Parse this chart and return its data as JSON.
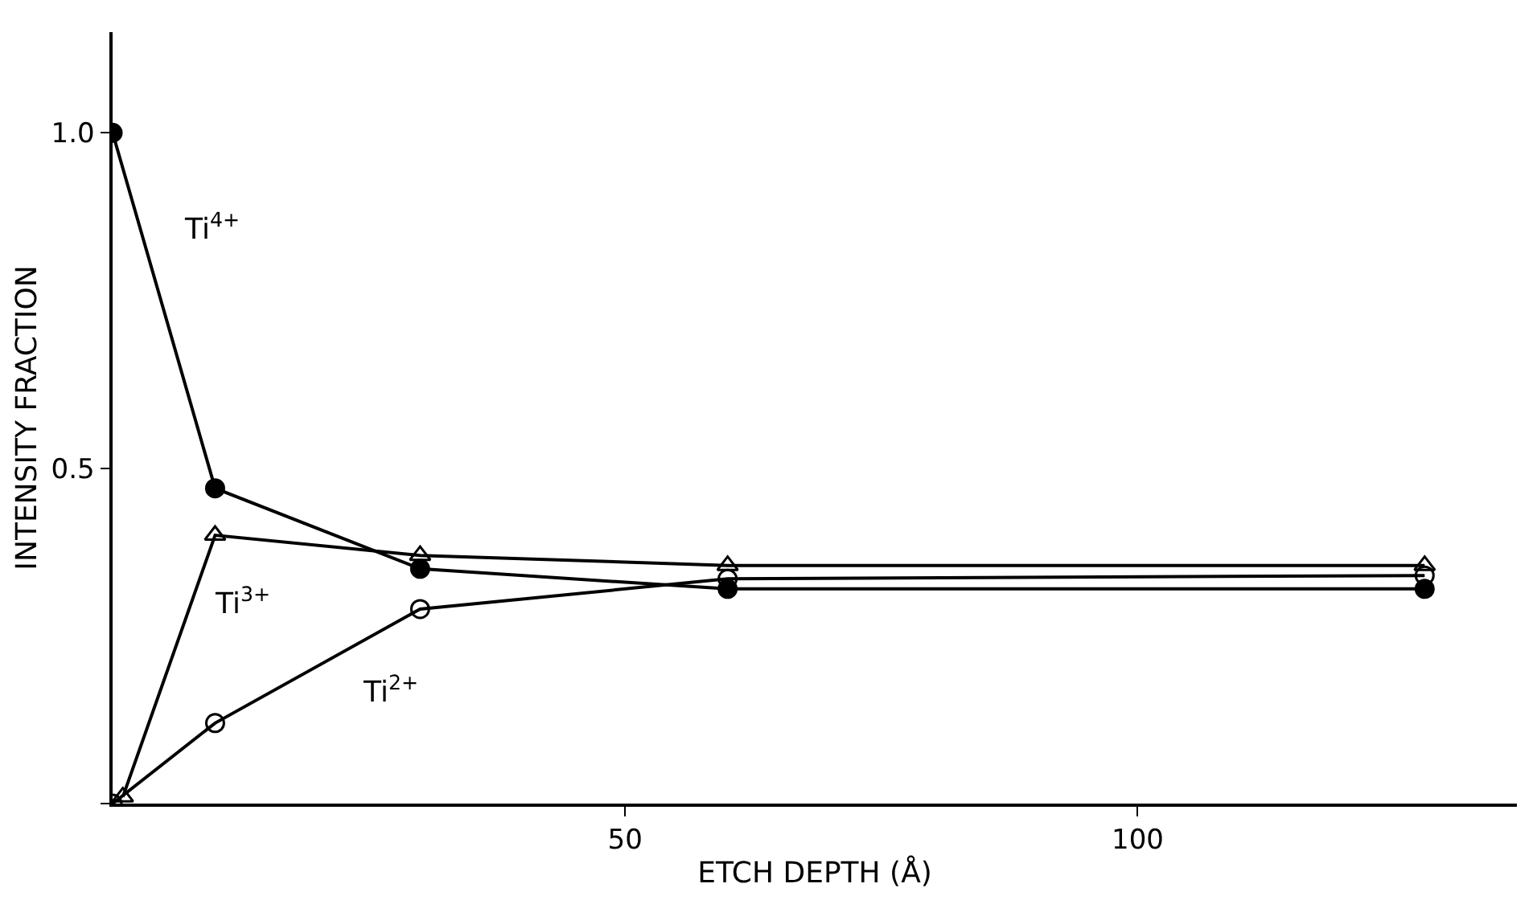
{
  "chart_data": {
    "type": "line",
    "xlabel": "ETCH DEPTH (Å)",
    "ylabel": "INTENSITY FRACTION",
    "xlim": [
      0,
      137
    ],
    "xticks": [
      50,
      100
    ],
    "ylim": [
      0,
      1.15
    ],
    "yticks": [
      {
        "value": 0,
        "label": null
      },
      0.5,
      {
        "value": 1.0,
        "label": "1.0"
      }
    ],
    "legend": false,
    "series": [
      {
        "name": "Ti$^{4+}$",
        "color": "#000000",
        "marker": "circle",
        "x": [
          0,
          10,
          30,
          60,
          128
        ],
        "values": [
          1.0,
          0.47,
          0.35,
          0.32,
          0.32
        ]
      },
      {
        "name": "Ti$^{3+}$",
        "color": "#000000",
        "marker": "triangle",
        "x": [
          1,
          10,
          30,
          60,
          128
        ],
        "values": [
          0.01,
          0.4,
          0.37,
          0.355,
          0.355
        ]
      },
      {
        "name": "Ti$^{2+}$",
        "color": "#000000",
        "marker": "circle",
        "x": [
          0,
          10,
          30,
          60,
          128
        ],
        "values": [
          0,
          0.12,
          0.29,
          0.335,
          0.34
        ]
      }
    ]
  }
}
